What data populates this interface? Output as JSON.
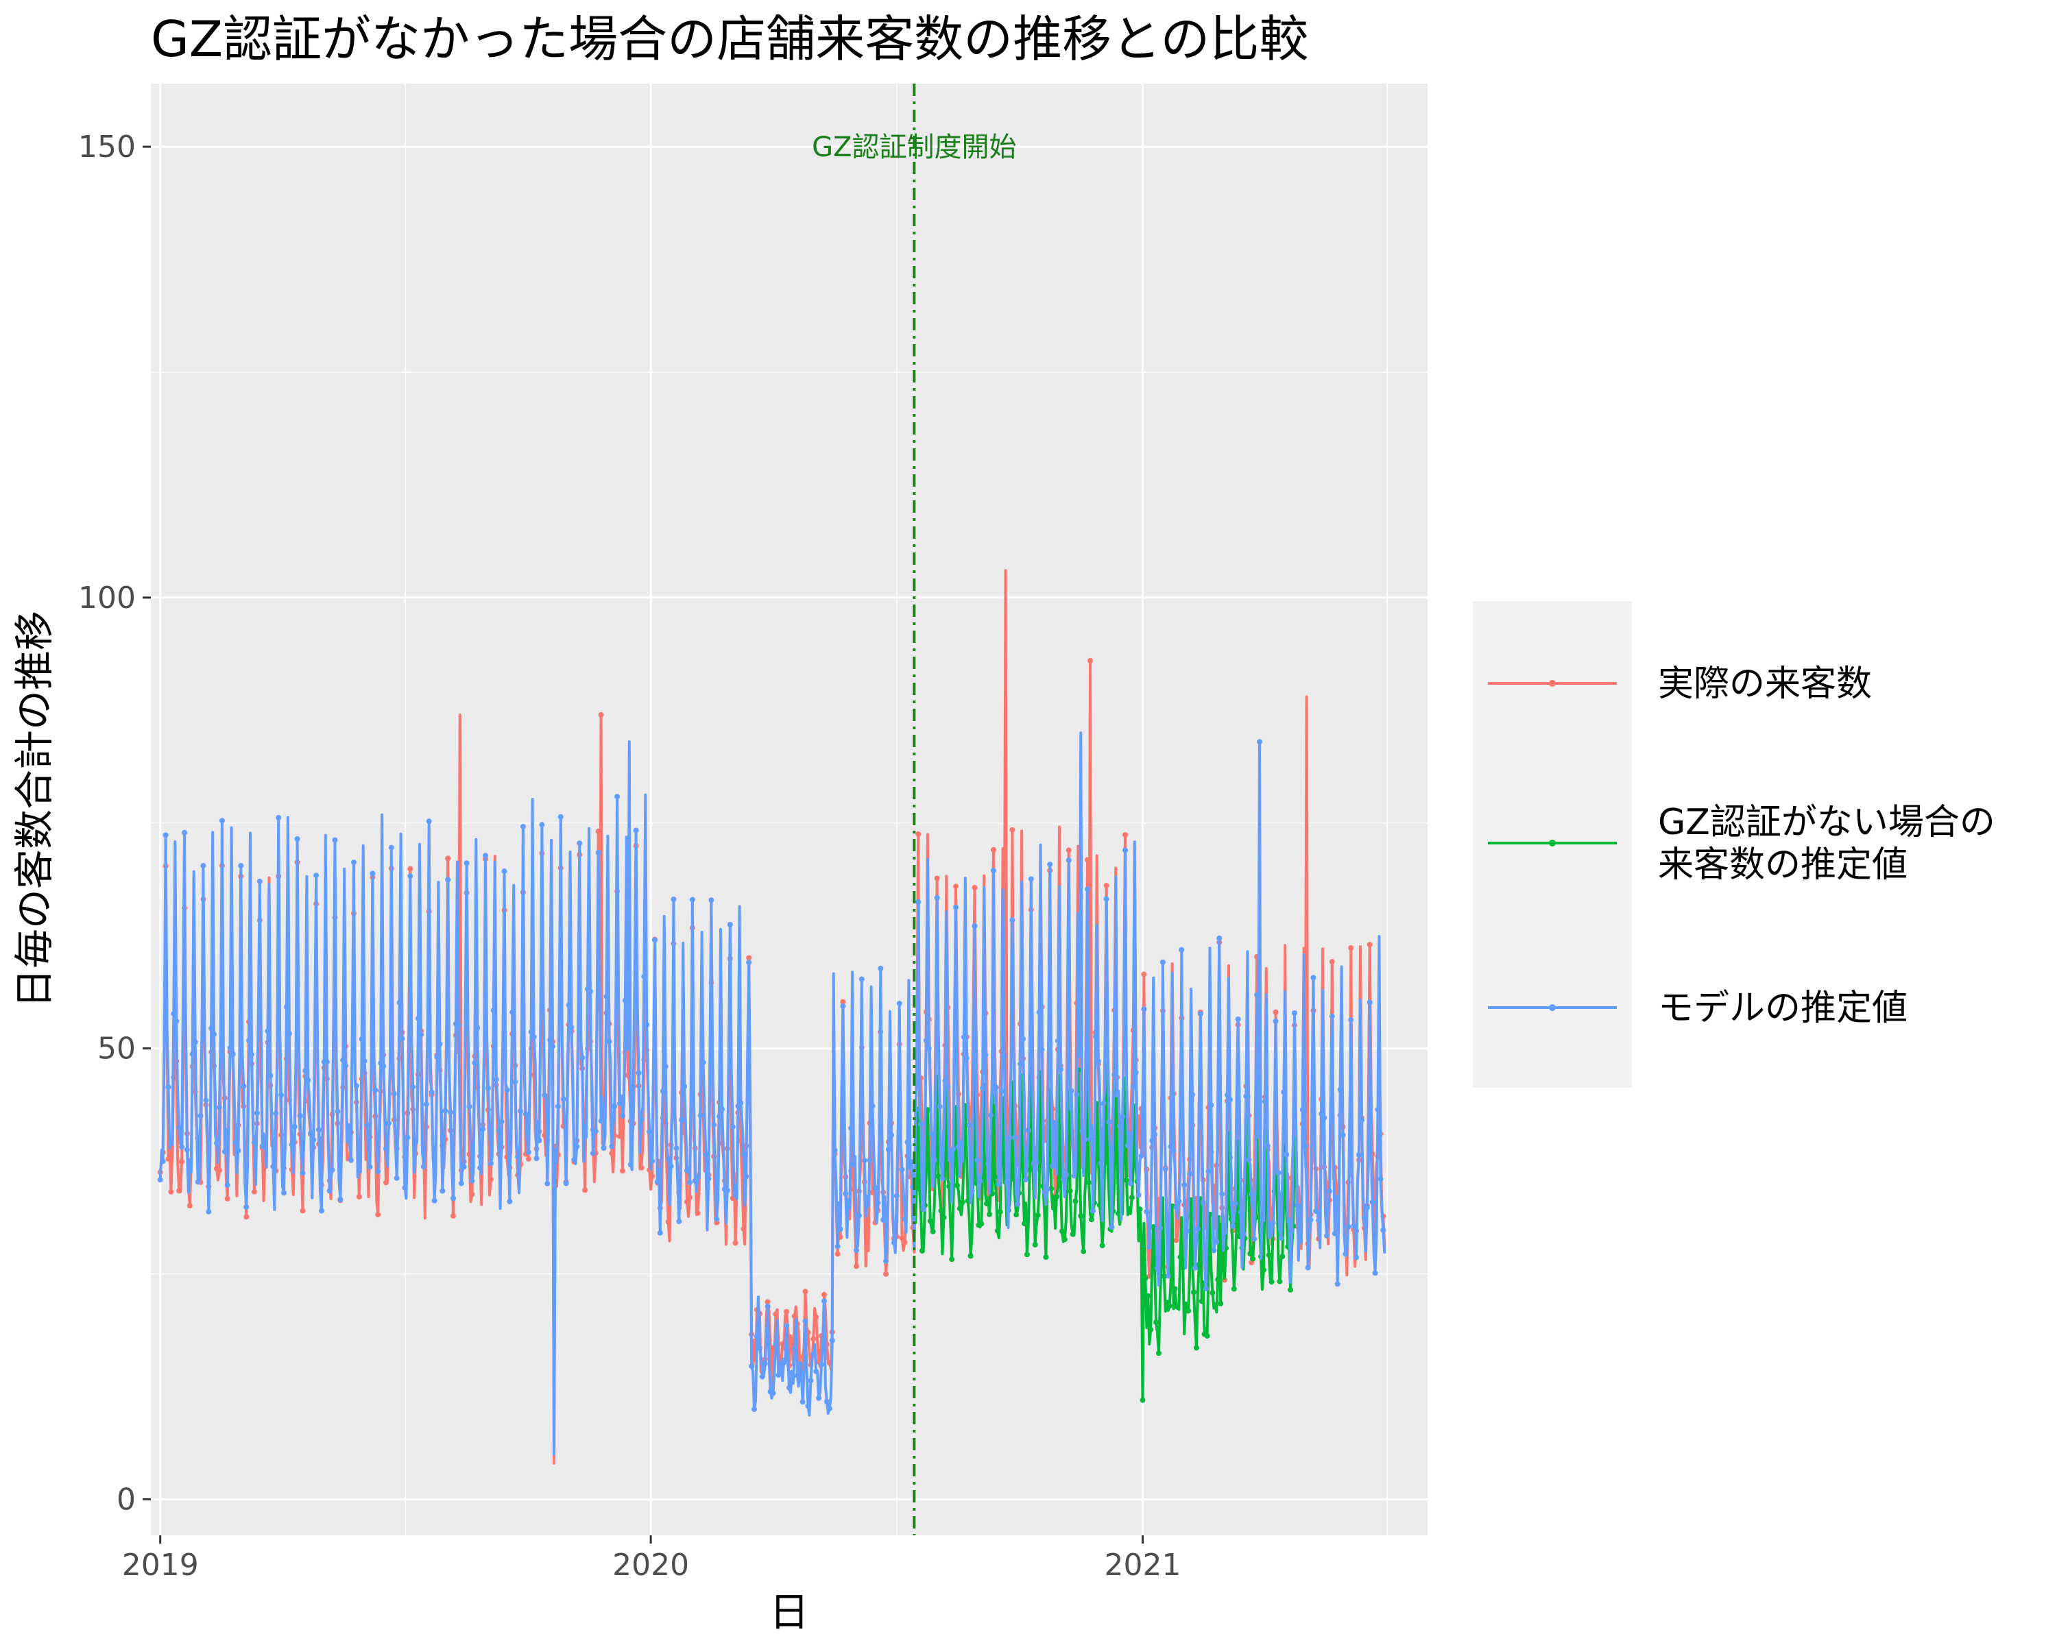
{
  "chart_data": {
    "type": "line",
    "title": "GZ認証がなかった場合の店舗来客数の推移との比較",
    "xlabel": "日",
    "ylabel": "日毎の客数合計の推移",
    "x_ticks": [
      "2019",
      "2020",
      "2021"
    ],
    "y_ticks": [
      "0",
      "50",
      "100",
      "150"
    ],
    "xlim": [
      "2018-12-25",
      "2021-08-01"
    ],
    "ylim": [
      -4,
      157
    ],
    "grid": true,
    "legend_position": "right",
    "annotation": {
      "label": "GZ認証制度開始",
      "date": "2020-07-15",
      "color": "#1a7f1a"
    },
    "series": [
      {
        "name": "実際の来客数",
        "color": "#F8766D",
        "segments": [
          {
            "start": "2019-01-01",
            "end": "2019-09-30",
            "base": 48,
            "amp": 20,
            "noise": 4
          },
          {
            "start": "2019-10-01",
            "end": "2019-12-31",
            "base": 51,
            "amp": 20,
            "noise": 4
          },
          {
            "start": "2020-01-01",
            "end": "2020-03-15",
            "base": 43,
            "amp": 17,
            "noise": 4
          },
          {
            "start": "2020-03-16",
            "end": "2020-05-15",
            "base": 18,
            "amp": 5,
            "noise": 3
          },
          {
            "start": "2020-05-16",
            "end": "2020-07-15",
            "base": 38,
            "amp": 15,
            "noise": 4
          },
          {
            "start": "2020-07-16",
            "end": "2020-12-31",
            "base": 50,
            "amp": 20,
            "noise": 5
          },
          {
            "start": "2021-01-01",
            "end": "2021-06-30",
            "base": 40,
            "amp": 17,
            "noise": 5
          }
        ],
        "peaks": [
          {
            "date": "2019-08-12",
            "value": 87
          },
          {
            "date": "2019-10-21",
            "value": 4
          },
          {
            "date": "2019-11-25",
            "value": 87
          },
          {
            "date": "2020-09-21",
            "value": 103
          },
          {
            "date": "2020-11-23",
            "value": 93
          },
          {
            "date": "2021-05-03",
            "value": 89
          }
        ]
      },
      {
        "name": "GZ認証がない場合の来客数の推定値",
        "color": "#00BA38",
        "segments": [
          {
            "start": "2020-07-15",
            "end": "2020-12-31",
            "base": 36,
            "amp": 10,
            "noise": 3
          },
          {
            "start": "2021-01-01",
            "end": "2021-02-28",
            "base": 24,
            "amp": 8,
            "noise": 3
          },
          {
            "start": "2021-03-01",
            "end": "2021-04-25",
            "base": 32,
            "amp": 10,
            "noise": 3
          }
        ],
        "peaks": [
          {
            "date": "2021-01-01",
            "value": 11
          }
        ]
      },
      {
        "name": "モデルの推定値",
        "color": "#619CFF",
        "segments": [
          {
            "start": "2019-01-01",
            "end": "2019-09-30",
            "base": 50,
            "amp": 22,
            "noise": 4
          },
          {
            "start": "2019-10-01",
            "end": "2019-12-31",
            "base": 53,
            "amp": 22,
            "noise": 4
          },
          {
            "start": "2020-01-01",
            "end": "2020-03-15",
            "base": 45,
            "amp": 18,
            "noise": 4
          },
          {
            "start": "2020-03-16",
            "end": "2020-05-15",
            "base": 15,
            "amp": 5,
            "noise": 3
          },
          {
            "start": "2020-05-16",
            "end": "2020-07-15",
            "base": 40,
            "amp": 16,
            "noise": 4
          },
          {
            "start": "2020-07-16",
            "end": "2020-12-31",
            "base": 48,
            "amp": 20,
            "noise": 5
          },
          {
            "start": "2021-01-01",
            "end": "2021-06-30",
            "base": 40,
            "amp": 18,
            "noise": 5
          }
        ],
        "peaks": [
          {
            "date": "2019-10-21",
            "value": 5
          },
          {
            "date": "2019-12-16",
            "value": 84
          },
          {
            "date": "2020-11-16",
            "value": 85
          },
          {
            "date": "2021-03-29",
            "value": 84
          }
        ]
      }
    ]
  }
}
